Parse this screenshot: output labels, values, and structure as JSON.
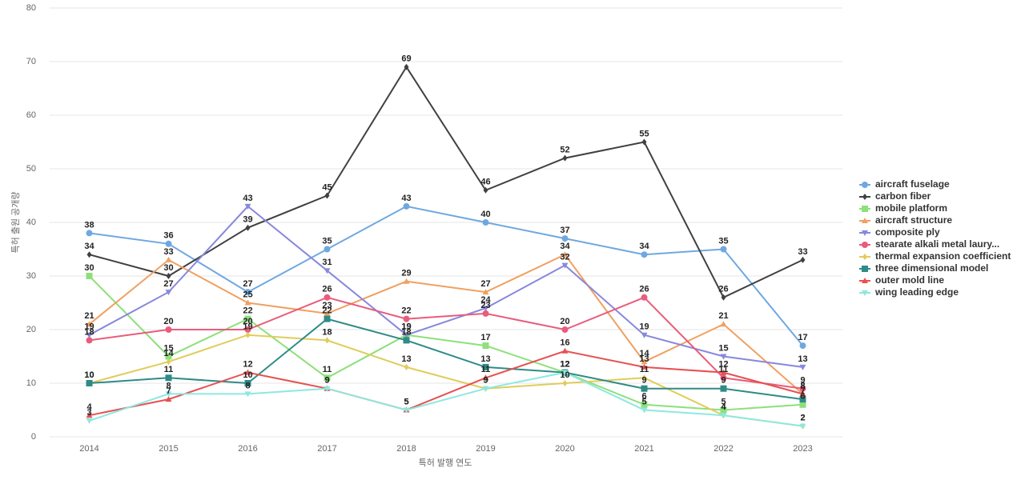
{
  "chart_data": {
    "type": "line",
    "x_label": "특허 발행 연도",
    "y_label": "특허 출원 공개량",
    "categories": [
      "2014",
      "2015",
      "2016",
      "2017",
      "2018",
      "2019",
      "2020",
      "2021",
      "2022",
      "2023"
    ],
    "ylim": [
      0,
      80
    ],
    "yticks": [
      0,
      10,
      20,
      30,
      40,
      50,
      60,
      70,
      80
    ],
    "grid": true,
    "legend": "right",
    "series": [
      {
        "name": "aircraft fuselage",
        "color": "#6fa8e0",
        "marker": "circle",
        "values": [
          38,
          36,
          27,
          35,
          43,
          40,
          37,
          34,
          35,
          17
        ]
      },
      {
        "name": "carbon fiber",
        "color": "#404040",
        "marker": "diamond",
        "values": [
          34,
          30,
          39,
          45,
          69,
          46,
          52,
          55,
          26,
          33
        ]
      },
      {
        "name": "mobile platform",
        "color": "#8de07a",
        "marker": "square",
        "values": [
          30,
          15,
          22,
          11,
          19,
          17,
          12,
          6,
          5,
          6
        ]
      },
      {
        "name": "aircraft structure",
        "color": "#f0a060",
        "marker": "triangle",
        "values": [
          21,
          33,
          25,
          23,
          29,
          27,
          34,
          14,
          21,
          8
        ]
      },
      {
        "name": "composite ply",
        "color": "#8888dd",
        "marker": "triangle-down",
        "values": [
          19,
          27,
          43,
          31,
          19,
          24,
          32,
          19,
          15,
          13
        ]
      },
      {
        "name": "stearate alkali metal laury...",
        "color": "#e85c7c",
        "marker": "circle",
        "values": [
          18,
          20,
          20,
          26,
          22,
          23,
          20,
          26,
          11,
          9
        ]
      },
      {
        "name": "thermal expansion coefficient",
        "color": "#e0cc5a",
        "marker": "diamond",
        "values": [
          10,
          14,
          19,
          18,
          13,
          9,
          10,
          11,
          4,
          2
        ]
      },
      {
        "name": "three dimensional model",
        "color": "#2e8b87",
        "marker": "square",
        "values": [
          10,
          11,
          10,
          22,
          18,
          13,
          12,
          9,
          9,
          7
        ]
      },
      {
        "name": "outer mold line",
        "color": "#e85050",
        "marker": "triangle",
        "values": [
          4,
          7,
          12,
          9,
          5,
          11,
          16,
          13,
          12,
          8
        ]
      },
      {
        "name": "wing leading edge",
        "color": "#8ee8e0",
        "marker": "triangle-down",
        "values": [
          3,
          8,
          8,
          9,
          5,
          9,
          12,
          5,
          4,
          2
        ]
      }
    ]
  }
}
